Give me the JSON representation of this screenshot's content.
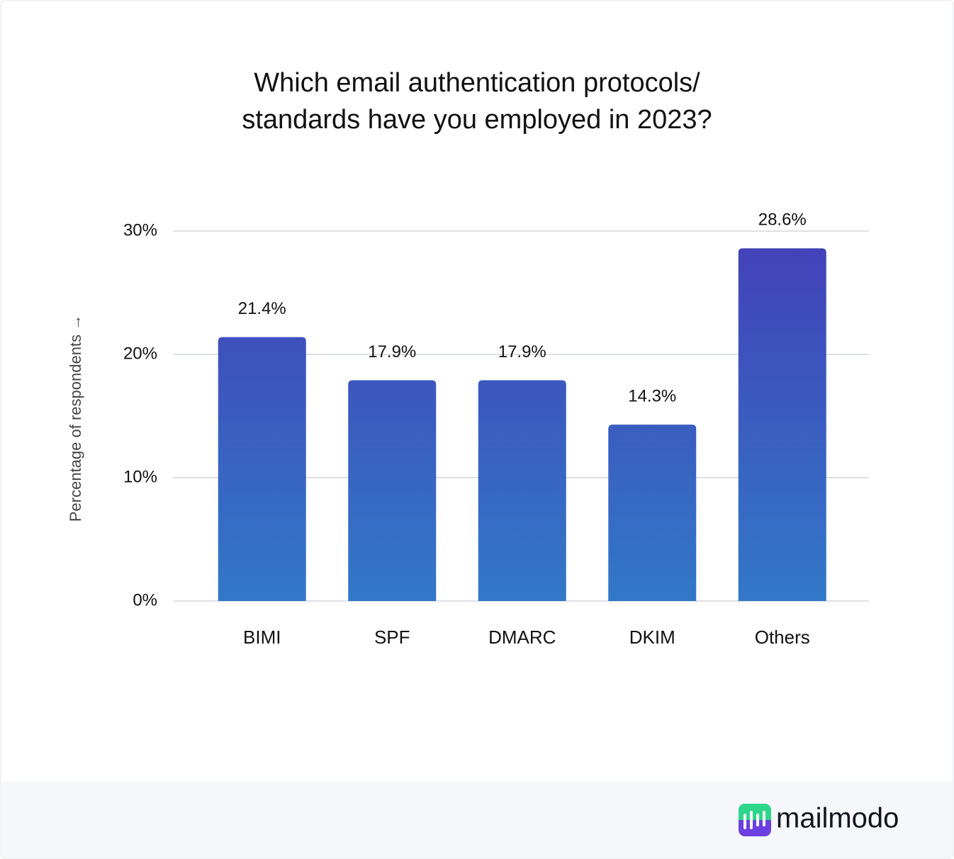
{
  "chart_data": {
    "type": "bar",
    "title": [
      "Which email authentication protocols/",
      "standards have you employed in 2023?"
    ],
    "y_label": "Percentage of respondents →",
    "categories": [
      "BIMI",
      "SPF",
      "DMARC",
      "DKIM",
      "Others"
    ],
    "values": [
      21.4,
      17.9,
      17.9,
      14.3,
      28.6
    ],
    "value_labels": [
      "21.4%",
      "17.9%",
      "17.9%",
      "14.3%",
      "28.6%"
    ],
    "gradient": [
      "#4340b8",
      "#3278c8"
    ],
    "ylim": [
      0,
      30
    ],
    "yticks": [
      {
        "value": 0,
        "label": "0%"
      },
      {
        "value": 10,
        "label": "10%"
      },
      {
        "value": 20,
        "label": "20%"
      },
      {
        "value": 30,
        "label": "30%"
      }
    ],
    "grid": true
  },
  "footer": {
    "brand": "mailmodo"
  }
}
